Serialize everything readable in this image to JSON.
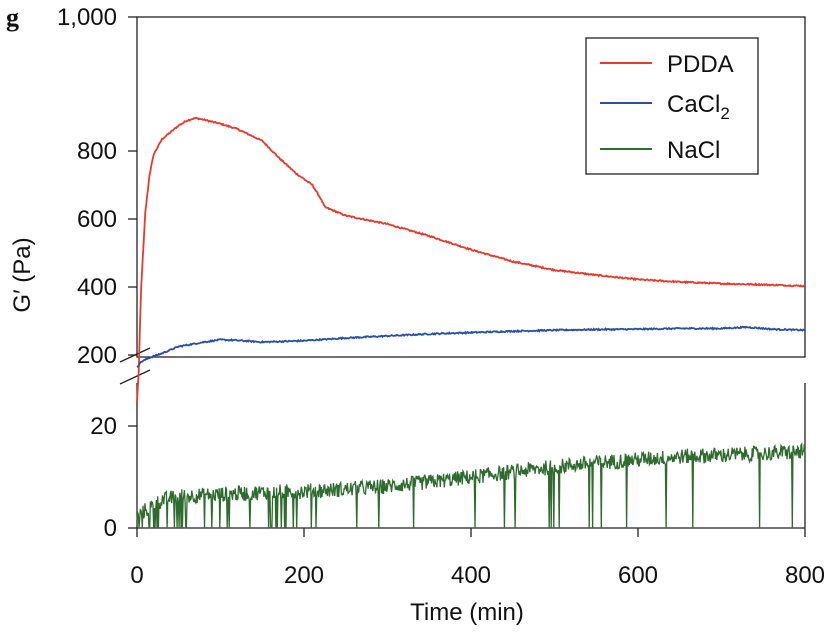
{
  "panel_label": "g",
  "chart_data": {
    "type": "line",
    "broken_y_axis": true,
    "xlabel": "Time (min)",
    "ylabel": "G′ (Pa)",
    "xlim": [
      0,
      800
    ],
    "x_ticks": [
      0,
      200,
      400,
      600,
      800
    ],
    "x_tick_labels": [
      "0",
      "200",
      "400",
      "600",
      "800"
    ],
    "upper_panel": {
      "ylim": [
        0,
        1000
      ],
      "y_ticks": [
        200,
        400,
        600,
        800,
        1000
      ],
      "y_tick_labels": [
        "200",
        "400",
        "600",
        "800",
        "1,000"
      ]
    },
    "lower_panel": {
      "ylim": [
        0,
        30
      ],
      "y_ticks": [
        0,
        20
      ],
      "y_tick_labels": [
        "0",
        "20"
      ]
    },
    "legend": {
      "position": "top-right",
      "entries": [
        {
          "label": "PDDA",
          "base": "PDDA",
          "sub": "",
          "color": "#e8392a"
        },
        {
          "label": "CaCl2",
          "base": "CaCl",
          "sub": "2",
          "color": "#2a4fa3"
        },
        {
          "label": "NaCl",
          "base": "NaCl",
          "sub": "",
          "color": "#2e6b2e"
        }
      ]
    },
    "series": [
      {
        "name": "PDDA",
        "color": "#e8392a",
        "panel": "upper",
        "x": [
          0,
          2,
          5,
          10,
          15,
          20,
          30,
          40,
          50,
          60,
          70,
          80,
          100,
          120,
          150,
          170,
          190,
          210,
          220,
          225,
          250,
          300,
          350,
          400,
          450,
          500,
          550,
          600,
          650,
          700,
          750,
          800
        ],
        "y": [
          60,
          150,
          400,
          620,
          730,
          790,
          835,
          855,
          875,
          890,
          897,
          892,
          880,
          865,
          830,
          780,
          735,
          700,
          660,
          635,
          610,
          585,
          550,
          510,
          475,
          450,
          435,
          422,
          415,
          410,
          407,
          403
        ]
      },
      {
        "name": "CaCl2",
        "color": "#2a4fa3",
        "panel": "upper",
        "x": [
          0,
          5,
          15,
          30,
          50,
          80,
          100,
          120,
          150,
          200,
          250,
          300,
          350,
          400,
          450,
          500,
          550,
          600,
          650,
          700,
          730,
          760,
          800
        ],
        "y": [
          165,
          180,
          192,
          205,
          225,
          238,
          245,
          243,
          238,
          242,
          250,
          256,
          262,
          266,
          270,
          273,
          275,
          276,
          278,
          278,
          282,
          276,
          273
        ]
      },
      {
        "name": "NaCl",
        "color": "#2e6b2e",
        "panel": "lower",
        "x": [
          0,
          10,
          20,
          30,
          50,
          100,
          150,
          200,
          250,
          300,
          350,
          400,
          450,
          500,
          550,
          600,
          650,
          700,
          750,
          800
        ],
        "y": [
          2,
          3.5,
          4.5,
          5.5,
          6.2,
          6.6,
          7,
          7.2,
          7.6,
          8.2,
          9,
          10,
          11,
          12,
          12.8,
          13.4,
          14,
          14.3,
          14.6,
          15
        ],
        "noise_amplitude": 1.5,
        "dropouts_to_zero": true
      }
    ]
  }
}
